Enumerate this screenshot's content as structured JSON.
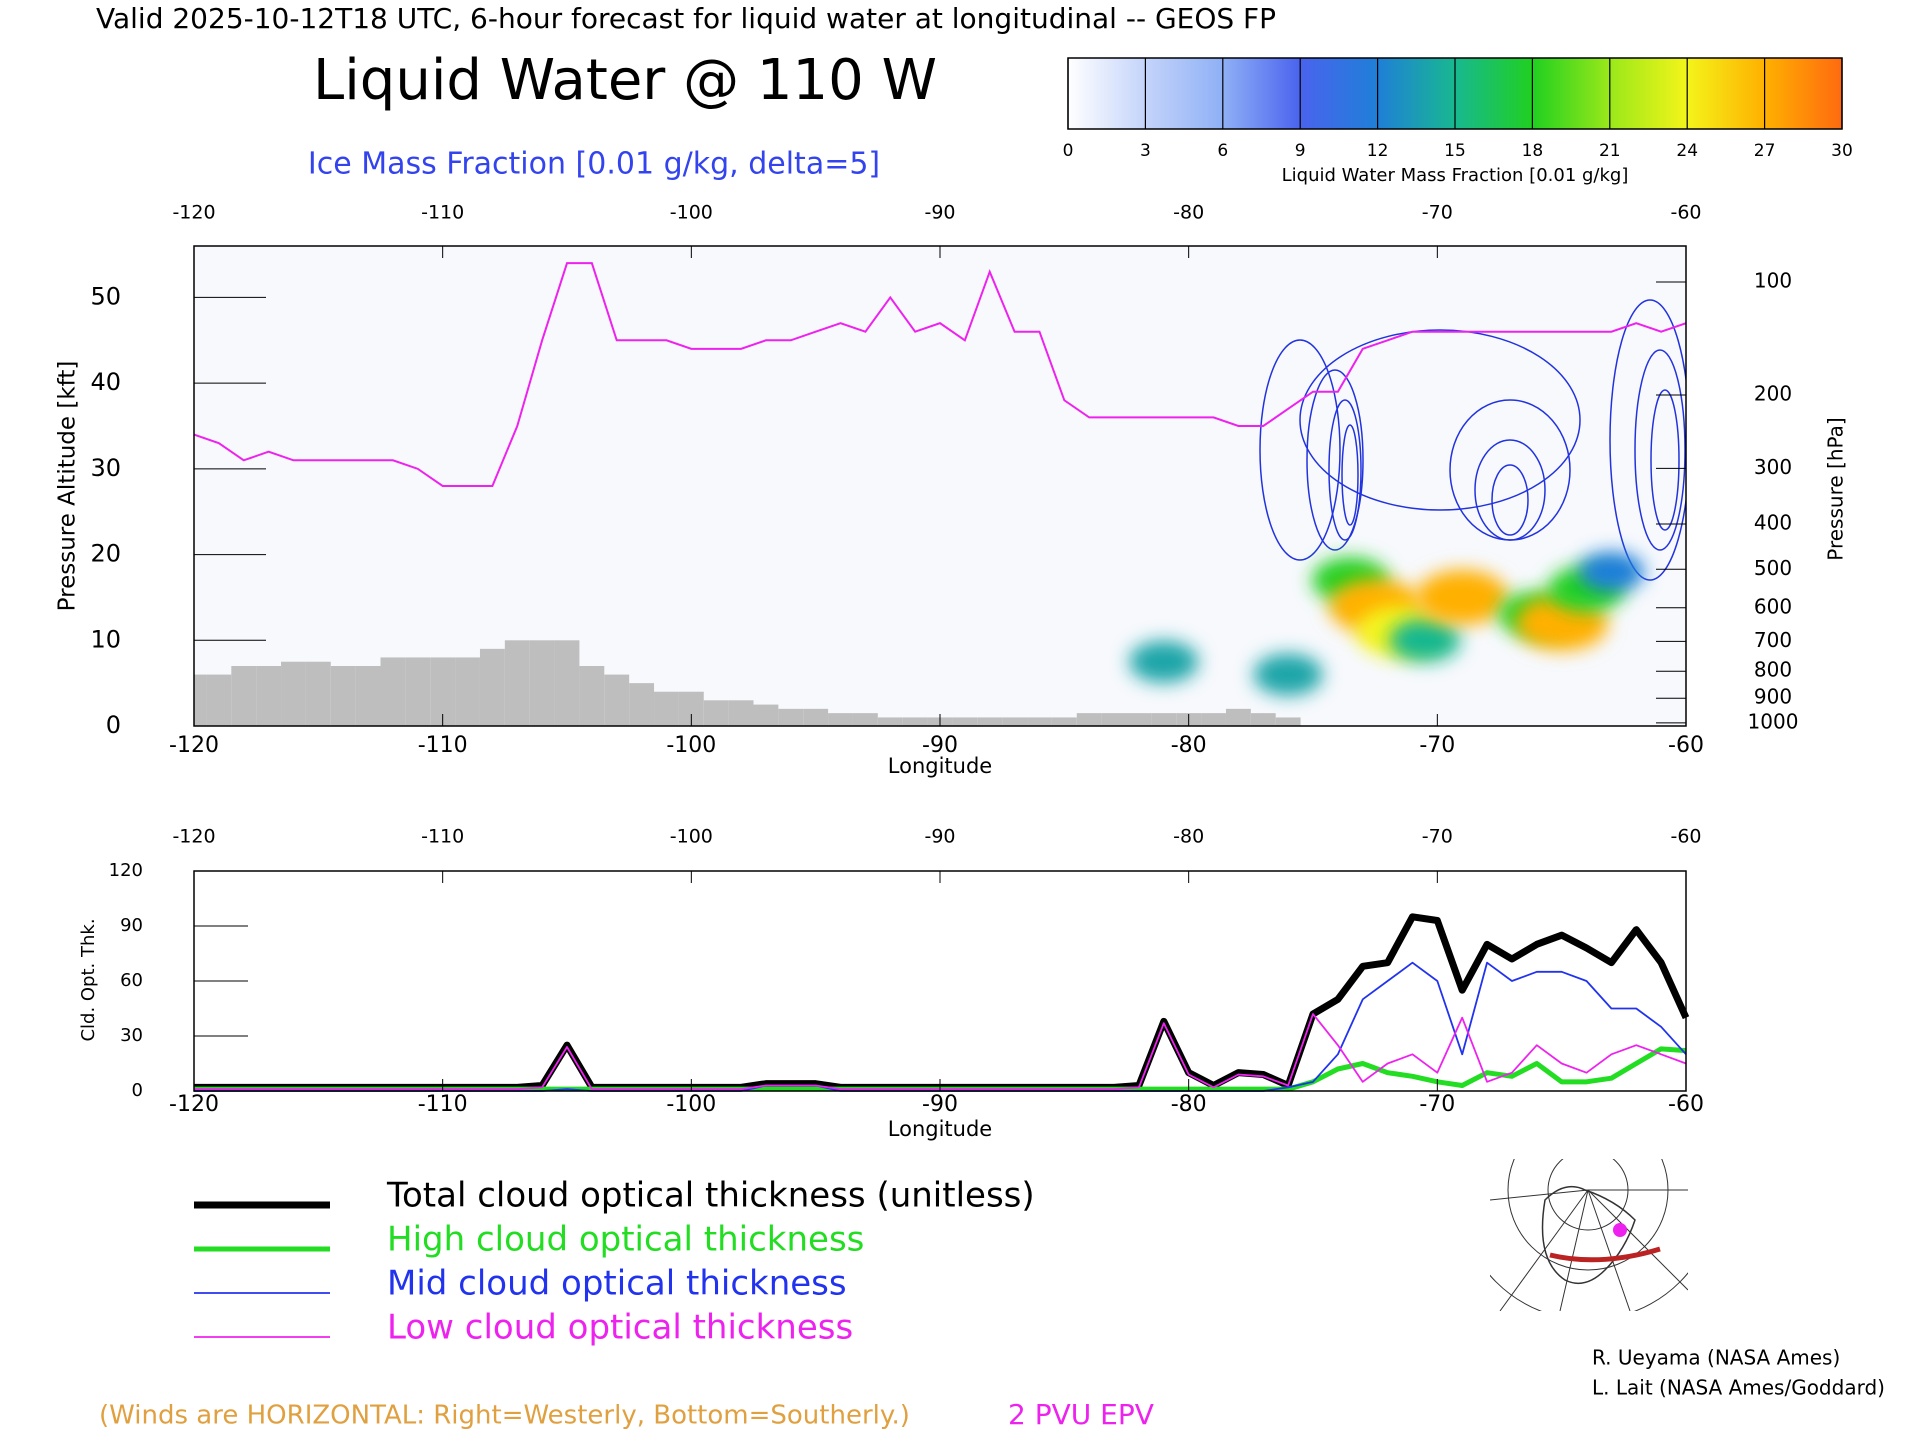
{
  "header": {
    "title": "Valid 2025-10-12T18 UTC, 6-hour forecast for liquid water at longitudinal -- GEOS FP",
    "note": "(Winds are HORIZONTAL: Right=Westerly, Bottom=Southerly.)",
    "credits": [
      "R. Ueyama (NASA Ames)",
      "L. Lait (NASA Ames/Goddard)"
    ]
  },
  "chart_data": [
    {
      "type": "cross-section",
      "title": "Liquid Water @ 110 W",
      "subtitle": "Ice Mass Fraction [0.01 g/kg, delta=5]",
      "x_label": "Longitude",
      "y_label": "Pressure Altitude [kft]",
      "y2_label": "Pressure [hPa]",
      "xlim": [
        -120,
        -60
      ],
      "xticks": [
        -120,
        -110,
        -100,
        -90,
        -80,
        -70,
        -60
      ],
      "ylim": [
        0,
        56
      ],
      "yticks": [
        0,
        10,
        20,
        30,
        40,
        50
      ],
      "y2ticks": [
        100,
        200,
        300,
        400,
        500,
        600,
        700,
        800,
        900,
        1000
      ],
      "colorbar": {
        "label": "Liquid Water Mass Fraction [0.01 g/kg]",
        "lim": [
          0,
          30
        ],
        "ticks": [
          0,
          3,
          6,
          9,
          12,
          15,
          18,
          21,
          24,
          27,
          30
        ],
        "colors": [
          "#ffffff",
          "#c4d4fa",
          "#8fb0f6",
          "#4a63ee",
          "#1f7fd8",
          "#18b890",
          "#20d020",
          "#9ae81a",
          "#f4f41a",
          "#ffb000",
          "#ff6a10"
        ]
      },
      "x": [
        -120,
        -119,
        -118,
        -117,
        -116,
        -115,
        -114,
        -113,
        -112,
        -111,
        -110,
        -109,
        -108,
        -107,
        -106,
        -105,
        -104,
        -103,
        -102,
        -101,
        -100,
        -99,
        -98,
        -97,
        -96,
        -95,
        -94,
        -93,
        -92,
        -91,
        -90,
        -89,
        -88,
        -87,
        -86,
        -85,
        -84,
        -83,
        -82,
        -81,
        -80,
        -79,
        -78,
        -77,
        -76,
        -75,
        -74,
        -73,
        -72,
        -71,
        -70,
        -69,
        -68,
        -67,
        -66,
        -65,
        -64,
        -63,
        -62,
        -61,
        -60
      ],
      "terrain": {
        "color": "#bebebe",
        "values": [
          6,
          6,
          7,
          7,
          7.5,
          7.5,
          7,
          7,
          8,
          8,
          8,
          8,
          9,
          10,
          10,
          10,
          7,
          6,
          5,
          4,
          4,
          3,
          3,
          2.5,
          2,
          2,
          1.5,
          1.5,
          1,
          1,
          1,
          1,
          1,
          1,
          1,
          1,
          1.5,
          1.5,
          1.5,
          1.5,
          1.5,
          1.5,
          2,
          1.5,
          1,
          0,
          0,
          0,
          0,
          0,
          0,
          0,
          0,
          0,
          0,
          0,
          0,
          0,
          0,
          0,
          0
        ]
      },
      "tropopause": {
        "name": "2 PVU EPV",
        "color": "#ee22ee",
        "values": [
          34,
          33,
          31,
          32,
          31,
          31,
          31,
          31,
          31,
          30,
          28,
          28,
          28,
          35,
          45,
          54,
          54,
          45,
          45,
          45,
          44,
          44,
          44,
          45,
          45,
          46,
          47,
          46,
          50,
          46,
          47,
          45,
          53,
          46,
          46,
          38,
          36,
          36,
          36,
          36,
          36,
          36,
          35,
          35,
          37,
          39,
          39,
          44,
          45,
          46,
          46,
          46,
          46,
          46,
          46,
          46,
          46,
          46,
          47,
          46,
          47
        ]
      },
      "liquid_water": {
        "x": [
          -81,
          -76,
          -73.5,
          -72.5,
          -71.5,
          -70.5,
          -69,
          -66,
          -65,
          -64,
          -63
        ],
        "y": [
          7.5,
          6,
          17,
          14,
          11,
          10,
          15,
          13,
          12,
          16,
          18
        ],
        "values": [
          14,
          14,
          18,
          27,
          24,
          15,
          27,
          18,
          27,
          18,
          12
        ]
      }
    },
    {
      "type": "line",
      "y_label": "Cld. Opt. Thk.",
      "x_label": "Longitude",
      "xlim": [
        -120,
        -60
      ],
      "xticks": [
        -120,
        -110,
        -100,
        -90,
        -80,
        -70,
        -60
      ],
      "ylim": [
        0,
        120
      ],
      "yticks": [
        0,
        30,
        60,
        90,
        120
      ],
      "x": [
        -120,
        -119,
        -118,
        -117,
        -116,
        -115,
        -114,
        -113,
        -112,
        -111,
        -110,
        -109,
        -108,
        -107,
        -106,
        -105,
        -104,
        -103,
        -102,
        -101,
        -100,
        -99,
        -98,
        -97,
        -96,
        -95,
        -94,
        -93,
        -92,
        -91,
        -90,
        -89,
        -88,
        -87,
        -86,
        -85,
        -84,
        -83,
        -82,
        -81,
        -80,
        -79,
        -78,
        -77,
        -76,
        -75,
        -74,
        -73,
        -72,
        -71,
        -70,
        -69,
        -68,
        -67,
        -66,
        -65,
        -64,
        -63,
        -62,
        -61,
        -60
      ],
      "series": [
        {
          "name": "Total cloud optical thickness (unitless)",
          "color": "#000000",
          "width": 7,
          "values": [
            2,
            2,
            2,
            2,
            2,
            2,
            2,
            2,
            2,
            2,
            2,
            2,
            2,
            2,
            3,
            25,
            2,
            2,
            2,
            2,
            2,
            2,
            2,
            4,
            4,
            4,
            2,
            2,
            2,
            2,
            2,
            2,
            2,
            2,
            2,
            2,
            2,
            2,
            3,
            38,
            10,
            3,
            10,
            9,
            3,
            42,
            50,
            68,
            70,
            95,
            93,
            55,
            80,
            72,
            80,
            85,
            78,
            70,
            88,
            70,
            40
          ]
        },
        {
          "name": "High cloud optical thickness",
          "color": "#22dd22",
          "width": 5,
          "values": [
            1,
            1,
            1,
            1,
            1,
            1,
            1,
            1,
            1,
            1,
            1,
            1,
            1,
            1,
            1,
            1,
            1,
            1,
            1,
            1,
            1,
            1,
            1,
            1,
            1,
            1,
            1,
            1,
            1,
            1,
            1,
            1,
            1,
            1,
            1,
            1,
            1,
            1,
            1,
            1,
            1,
            1,
            1,
            1,
            1,
            5,
            12,
            15,
            10,
            8,
            5,
            3,
            10,
            8,
            15,
            5,
            5,
            7,
            15,
            23,
            22
          ]
        },
        {
          "name": "Mid cloud optical thickness",
          "color": "#2233ee",
          "width": 1.8,
          "values": [
            0,
            0,
            0,
            0,
            0,
            0,
            0,
            0,
            0,
            0,
            0,
            0,
            0,
            0,
            0,
            1,
            0,
            0,
            0,
            0,
            0,
            0,
            0,
            3,
            3,
            3,
            0,
            0,
            0,
            0,
            0,
            0,
            0,
            0,
            0,
            0,
            0,
            0,
            0,
            0,
            0,
            0,
            0,
            0,
            2,
            5,
            20,
            50,
            60,
            70,
            60,
            20,
            70,
            60,
            65,
            65,
            60,
            45,
            45,
            35,
            20
          ]
        },
        {
          "name": "Low cloud optical thickness",
          "color": "#ee22ee",
          "width": 1.8,
          "values": [
            1,
            1,
            1,
            1,
            1,
            1,
            1,
            1,
            1,
            1,
            1,
            1,
            1,
            1,
            2,
            24,
            1,
            1,
            1,
            1,
            1,
            1,
            1,
            3,
            3,
            3,
            1,
            1,
            1,
            1,
            1,
            1,
            1,
            1,
            1,
            1,
            1,
            1,
            2,
            37,
            9,
            2,
            9,
            8,
            3,
            42,
            25,
            5,
            15,
            20,
            10,
            40,
            5,
            10,
            25,
            15,
            10,
            20,
            25,
            20,
            15
          ]
        }
      ]
    }
  ]
}
